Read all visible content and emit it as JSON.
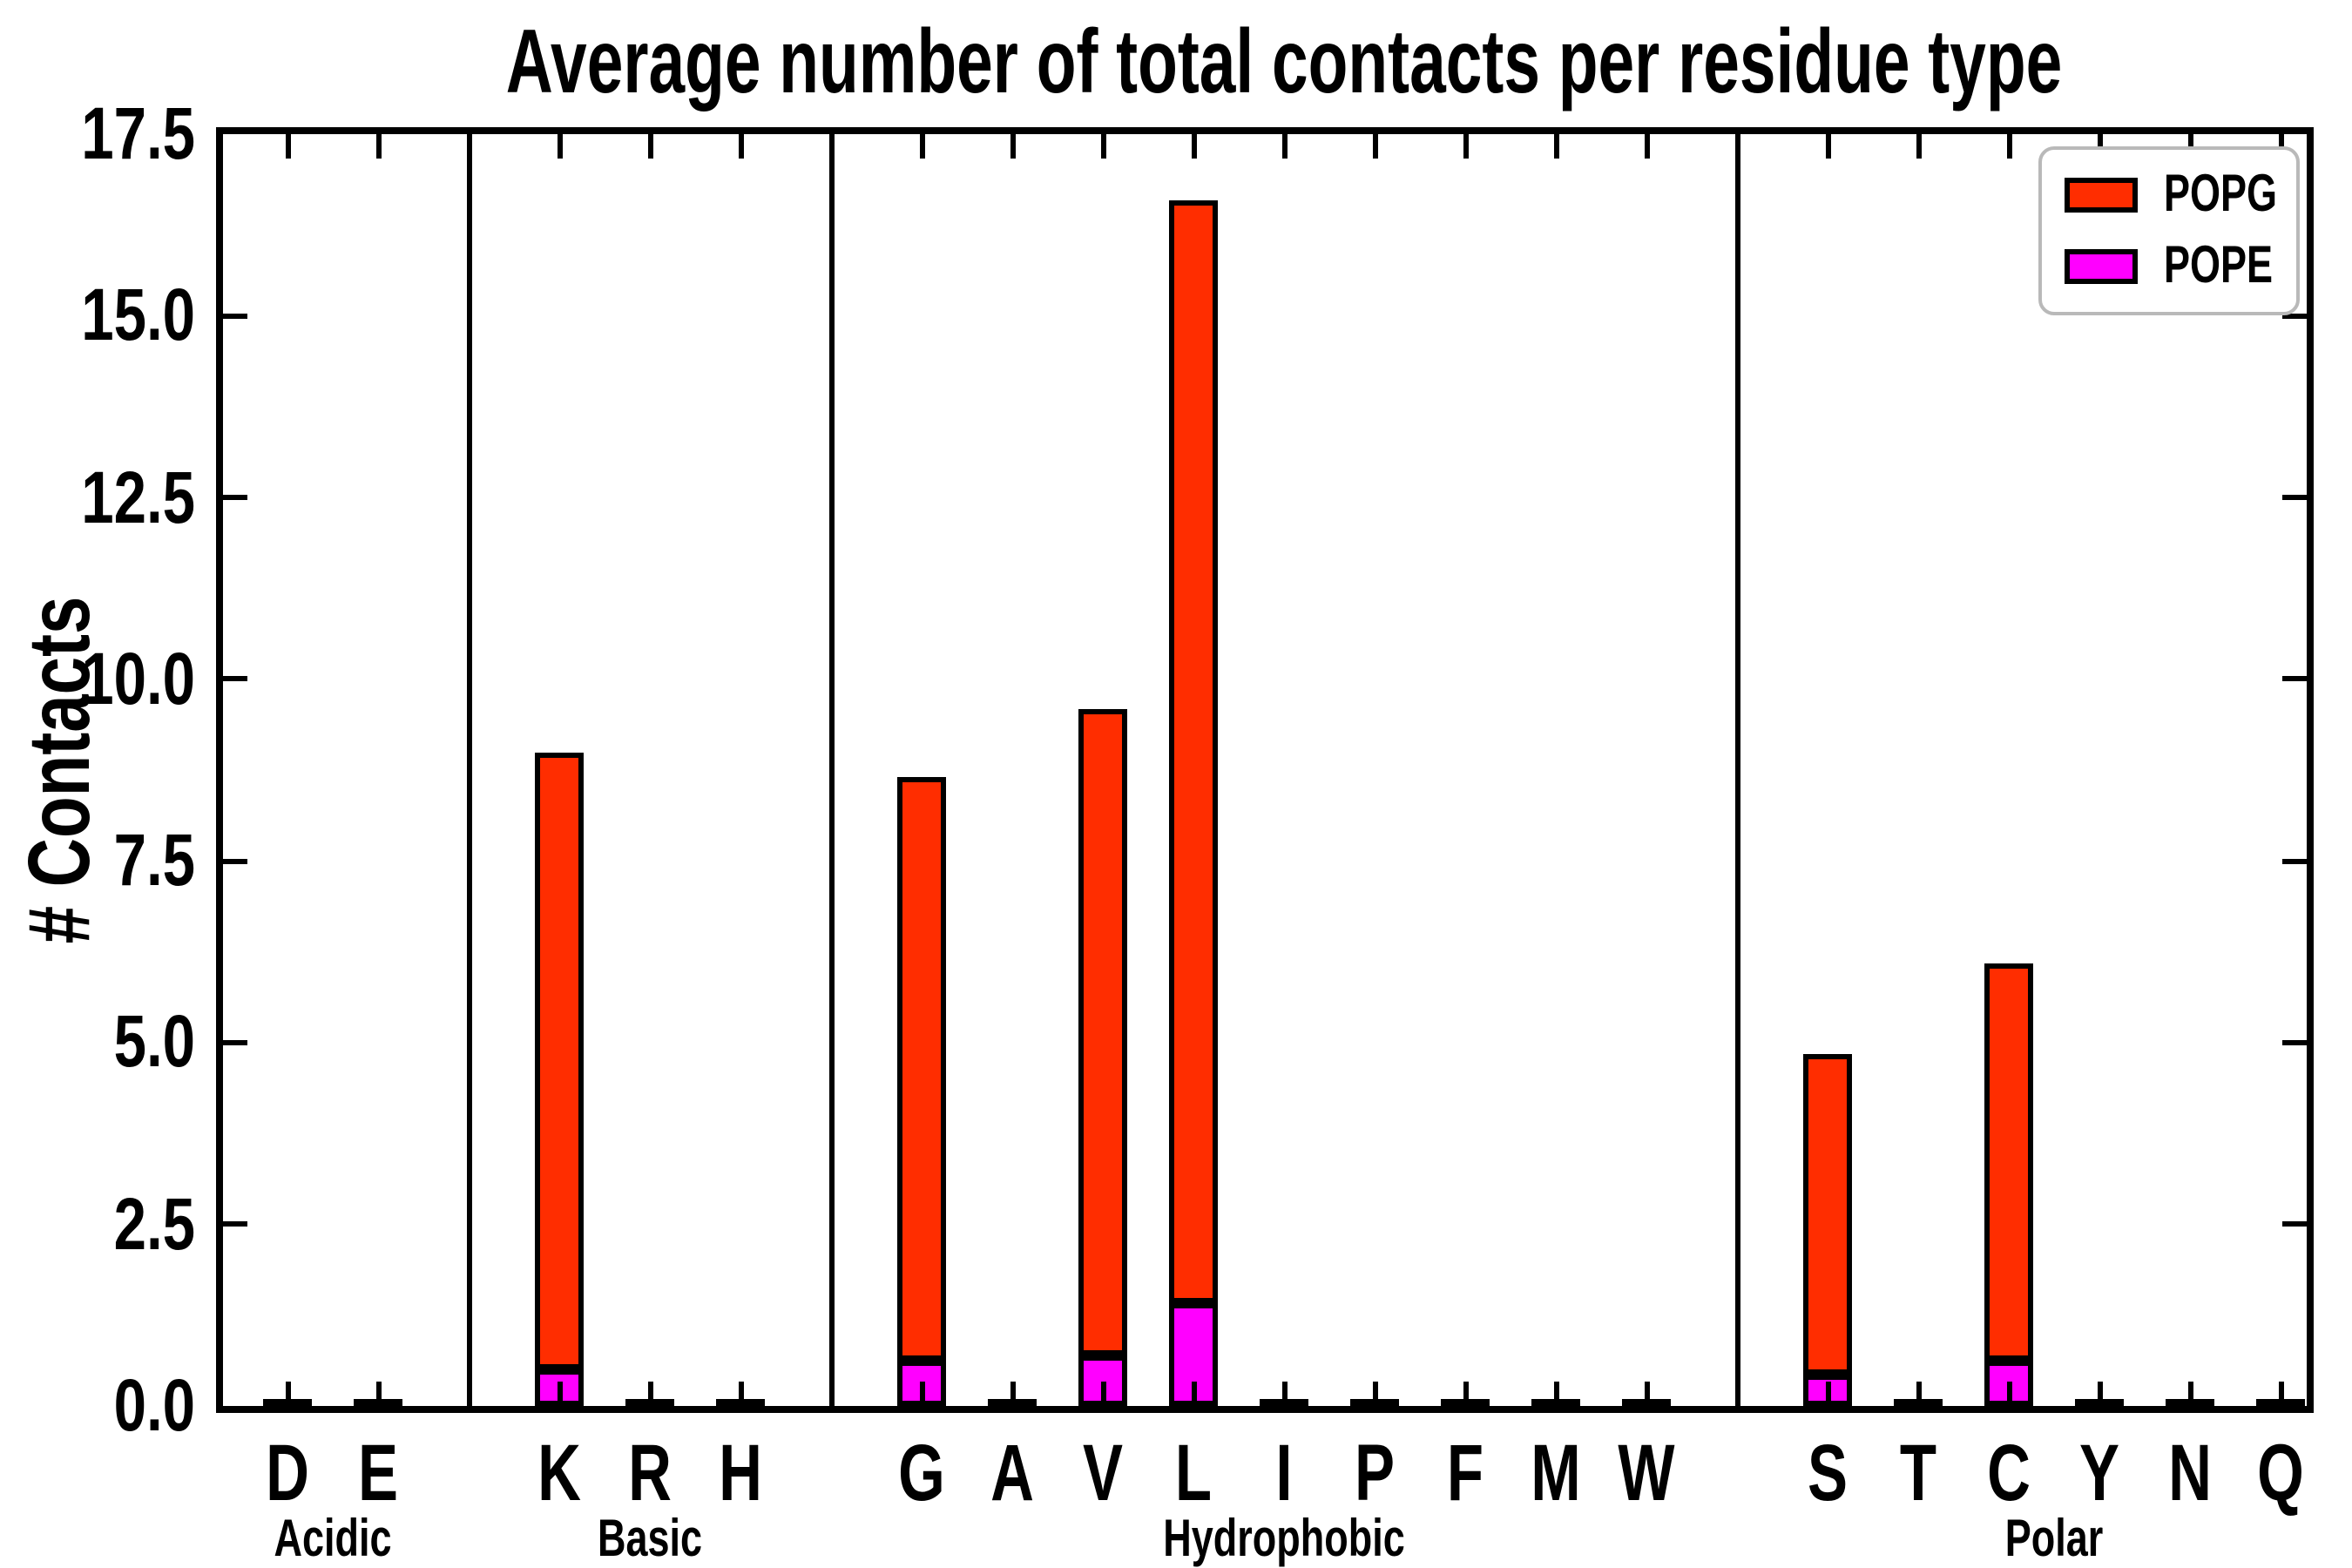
{
  "title": "Average number of total contacts per residue type",
  "ylabel": "# Contacts",
  "legend": {
    "items": [
      {
        "label": "POPG",
        "color": "#ff2d00"
      },
      {
        "label": "POPE",
        "color": "#ff00ff"
      }
    ]
  },
  "chart_data": {
    "type": "bar",
    "stacked": true,
    "title": "Average number of total contacts per residue type",
    "xlabel": "",
    "ylabel": "# Contacts",
    "ylim": [
      0,
      17.5
    ],
    "yticks": [
      0.0,
      2.5,
      5.0,
      7.5,
      10.0,
      12.5,
      15.0,
      17.5
    ],
    "grid": false,
    "legend_position": "upper right",
    "groups": [
      {
        "label": "Acidic",
        "categories": [
          "D",
          "E"
        ]
      },
      {
        "label": "Basic",
        "categories": [
          "K",
          "R",
          "H"
        ]
      },
      {
        "label": "Hydrophobic",
        "categories": [
          "G",
          "A",
          "V",
          "L",
          "I",
          "P",
          "F",
          "M",
          "W"
        ]
      },
      {
        "label": "Polar",
        "categories": [
          "S",
          "T",
          "C",
          "Y",
          "N",
          "Q"
        ]
      }
    ],
    "categories": [
      "D",
      "E",
      "K",
      "R",
      "H",
      "G",
      "A",
      "V",
      "L",
      "I",
      "P",
      "F",
      "M",
      "W",
      "S",
      "T",
      "C",
      "Y",
      "N",
      "Q"
    ],
    "series": [
      {
        "name": "POPE",
        "color": "#ff00ff",
        "values": [
          0,
          0,
          0.5,
          0,
          0,
          0.63,
          0,
          0.7,
          1.42,
          0,
          0,
          0,
          0,
          0,
          0.42,
          0,
          0.62,
          0,
          0,
          0
        ]
      },
      {
        "name": "POPG",
        "color": "#ff2d00",
        "values": [
          0.03,
          0.03,
          8.5,
          0.03,
          0.03,
          8.02,
          0.03,
          8.9,
          15.18,
          0.04,
          0.03,
          0.04,
          0.03,
          0.03,
          4.43,
          0.04,
          5.48,
          0.04,
          0.03,
          0.03
        ]
      }
    ],
    "totals": [
      0.03,
      0.03,
      9.0,
      0.03,
      0.03,
      8.65,
      0.03,
      9.6,
      16.6,
      0.04,
      0.03,
      0.04,
      0.03,
      0.03,
      4.85,
      0.04,
      6.1,
      0.04,
      0.03,
      0.03
    ]
  }
}
